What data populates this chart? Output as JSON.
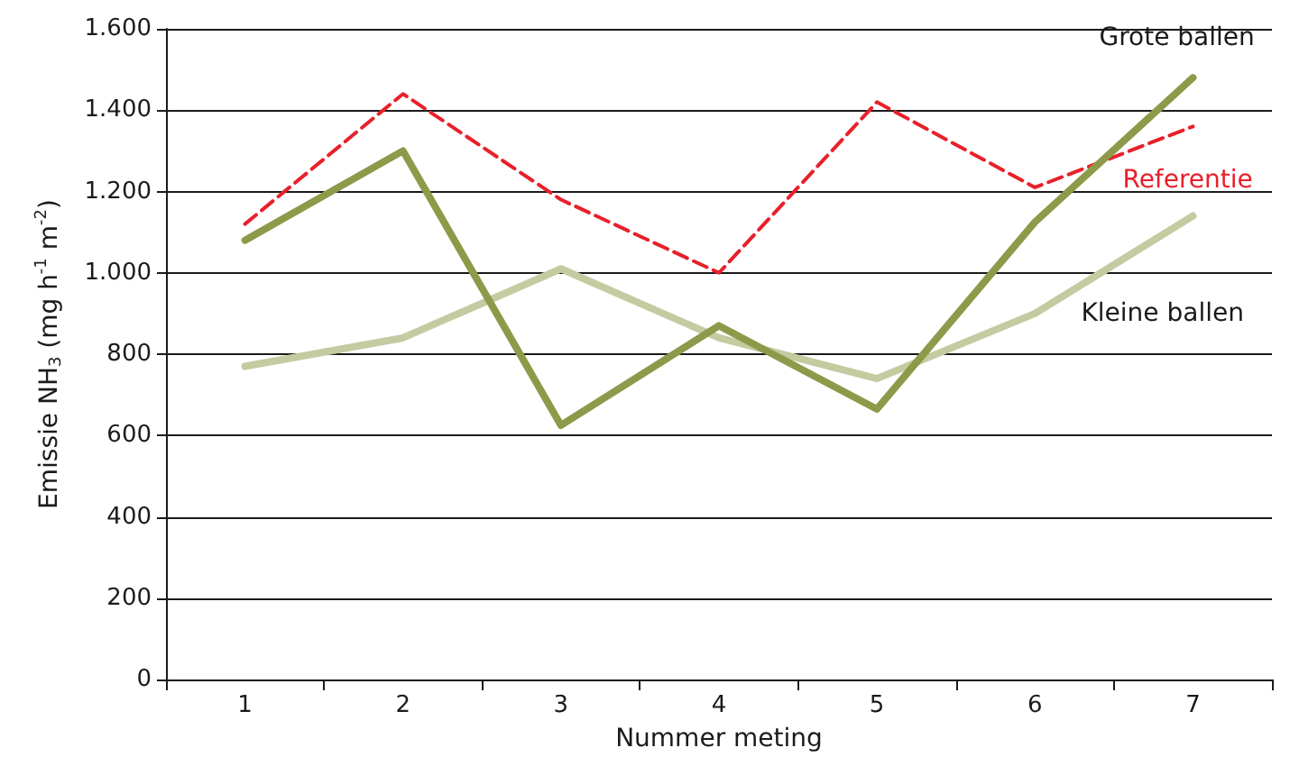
{
  "chart_data": {
    "type": "line",
    "xlabel": "Nummer meting",
    "ylabel": "Emissie NH$_{3}$ (mg h$^{-1}$ m$^{-2}$)",
    "categories": [
      "1",
      "2",
      "3",
      "4",
      "5",
      "6",
      "7"
    ],
    "series": [
      {
        "name": "Grote ballen",
        "color": "#8c9a4a",
        "values": [
          1080,
          1300,
          625,
          870,
          665,
          1125,
          1480
        ],
        "line_style": "solid"
      },
      {
        "name": "Referentie",
        "color": "#e8202a",
        "values": [
          1120,
          1440,
          1180,
          1000,
          1420,
          1210,
          1360
        ],
        "line_style": "dashed"
      },
      {
        "name": "Kleine ballen",
        "color": "#c5caa0",
        "values": [
          770,
          840,
          1010,
          840,
          740,
          900,
          1140
        ],
        "line_style": "solid"
      }
    ],
    "ylim": [
      0,
      1600
    ],
    "yticks": [
      {
        "value": 0,
        "label": "0"
      },
      {
        "value": 200,
        "label": "200"
      },
      {
        "value": 400,
        "label": "400"
      },
      {
        "value": 600,
        "label": "600"
      },
      {
        "value": 800,
        "label": "800"
      },
      {
        "value": 1000,
        "label": "1.000"
      },
      {
        "value": 1200,
        "label": "1.200"
      },
      {
        "value": 1400,
        "label": "1.400"
      },
      {
        "value": 1600,
        "label": "1.600"
      }
    ],
    "grid": "y",
    "legend": false,
    "marker": "none"
  }
}
